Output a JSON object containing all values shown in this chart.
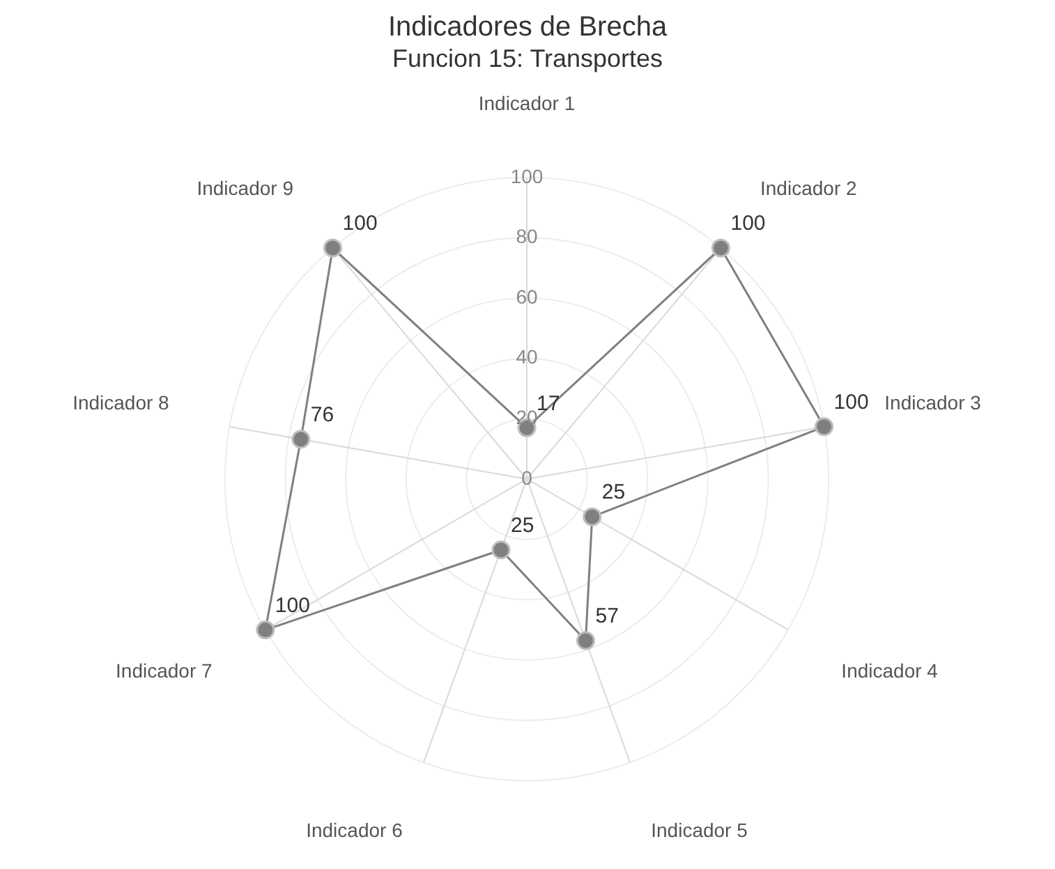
{
  "chart_data": {
    "type": "radar",
    "title": "Indicadores de Brecha",
    "subtitle": "Funcion 15: Transportes",
    "categories": [
      "Indicador 1",
      "Indicador 2",
      "Indicador 3",
      "Indicador 4",
      "Indicador 5",
      "Indicador 6",
      "Indicador 7",
      "Indicador 8",
      "Indicador 9"
    ],
    "series": [
      {
        "color": "#7f7f7f",
        "values": [
          17,
          100,
          100,
          25,
          57,
          25,
          100,
          76,
          100
        ]
      }
    ],
    "ylim": [
      0,
      100
    ],
    "yticks": [
      0,
      20,
      40,
      60,
      80,
      100
    ],
    "grid": true,
    "legend": false,
    "marker": "circle",
    "line_style": "solid",
    "data_labels": true
  }
}
